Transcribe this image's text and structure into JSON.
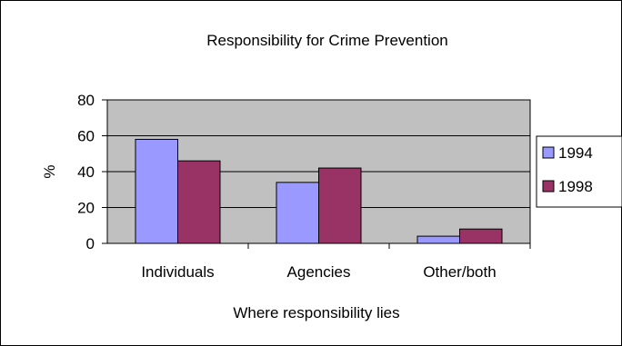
{
  "chart_data": {
    "type": "bar",
    "title": "Responsibility for Crime Prevention",
    "xlabel": "Where responsibility lies",
    "ylabel": "%",
    "categories": [
      "Individuals",
      "Agencies",
      "Other/both"
    ],
    "series": [
      {
        "name": "1994",
        "values": [
          58,
          34,
          4
        ],
        "color": "#9999ff"
      },
      {
        "name": "1998",
        "values": [
          46,
          42,
          8
        ],
        "color": "#993366"
      }
    ],
    "ylim": [
      0,
      80
    ],
    "yticks": [
      0,
      20,
      40,
      60,
      80
    ],
    "grid": true,
    "legend": "right",
    "plot_background": "#c0c0c0"
  }
}
